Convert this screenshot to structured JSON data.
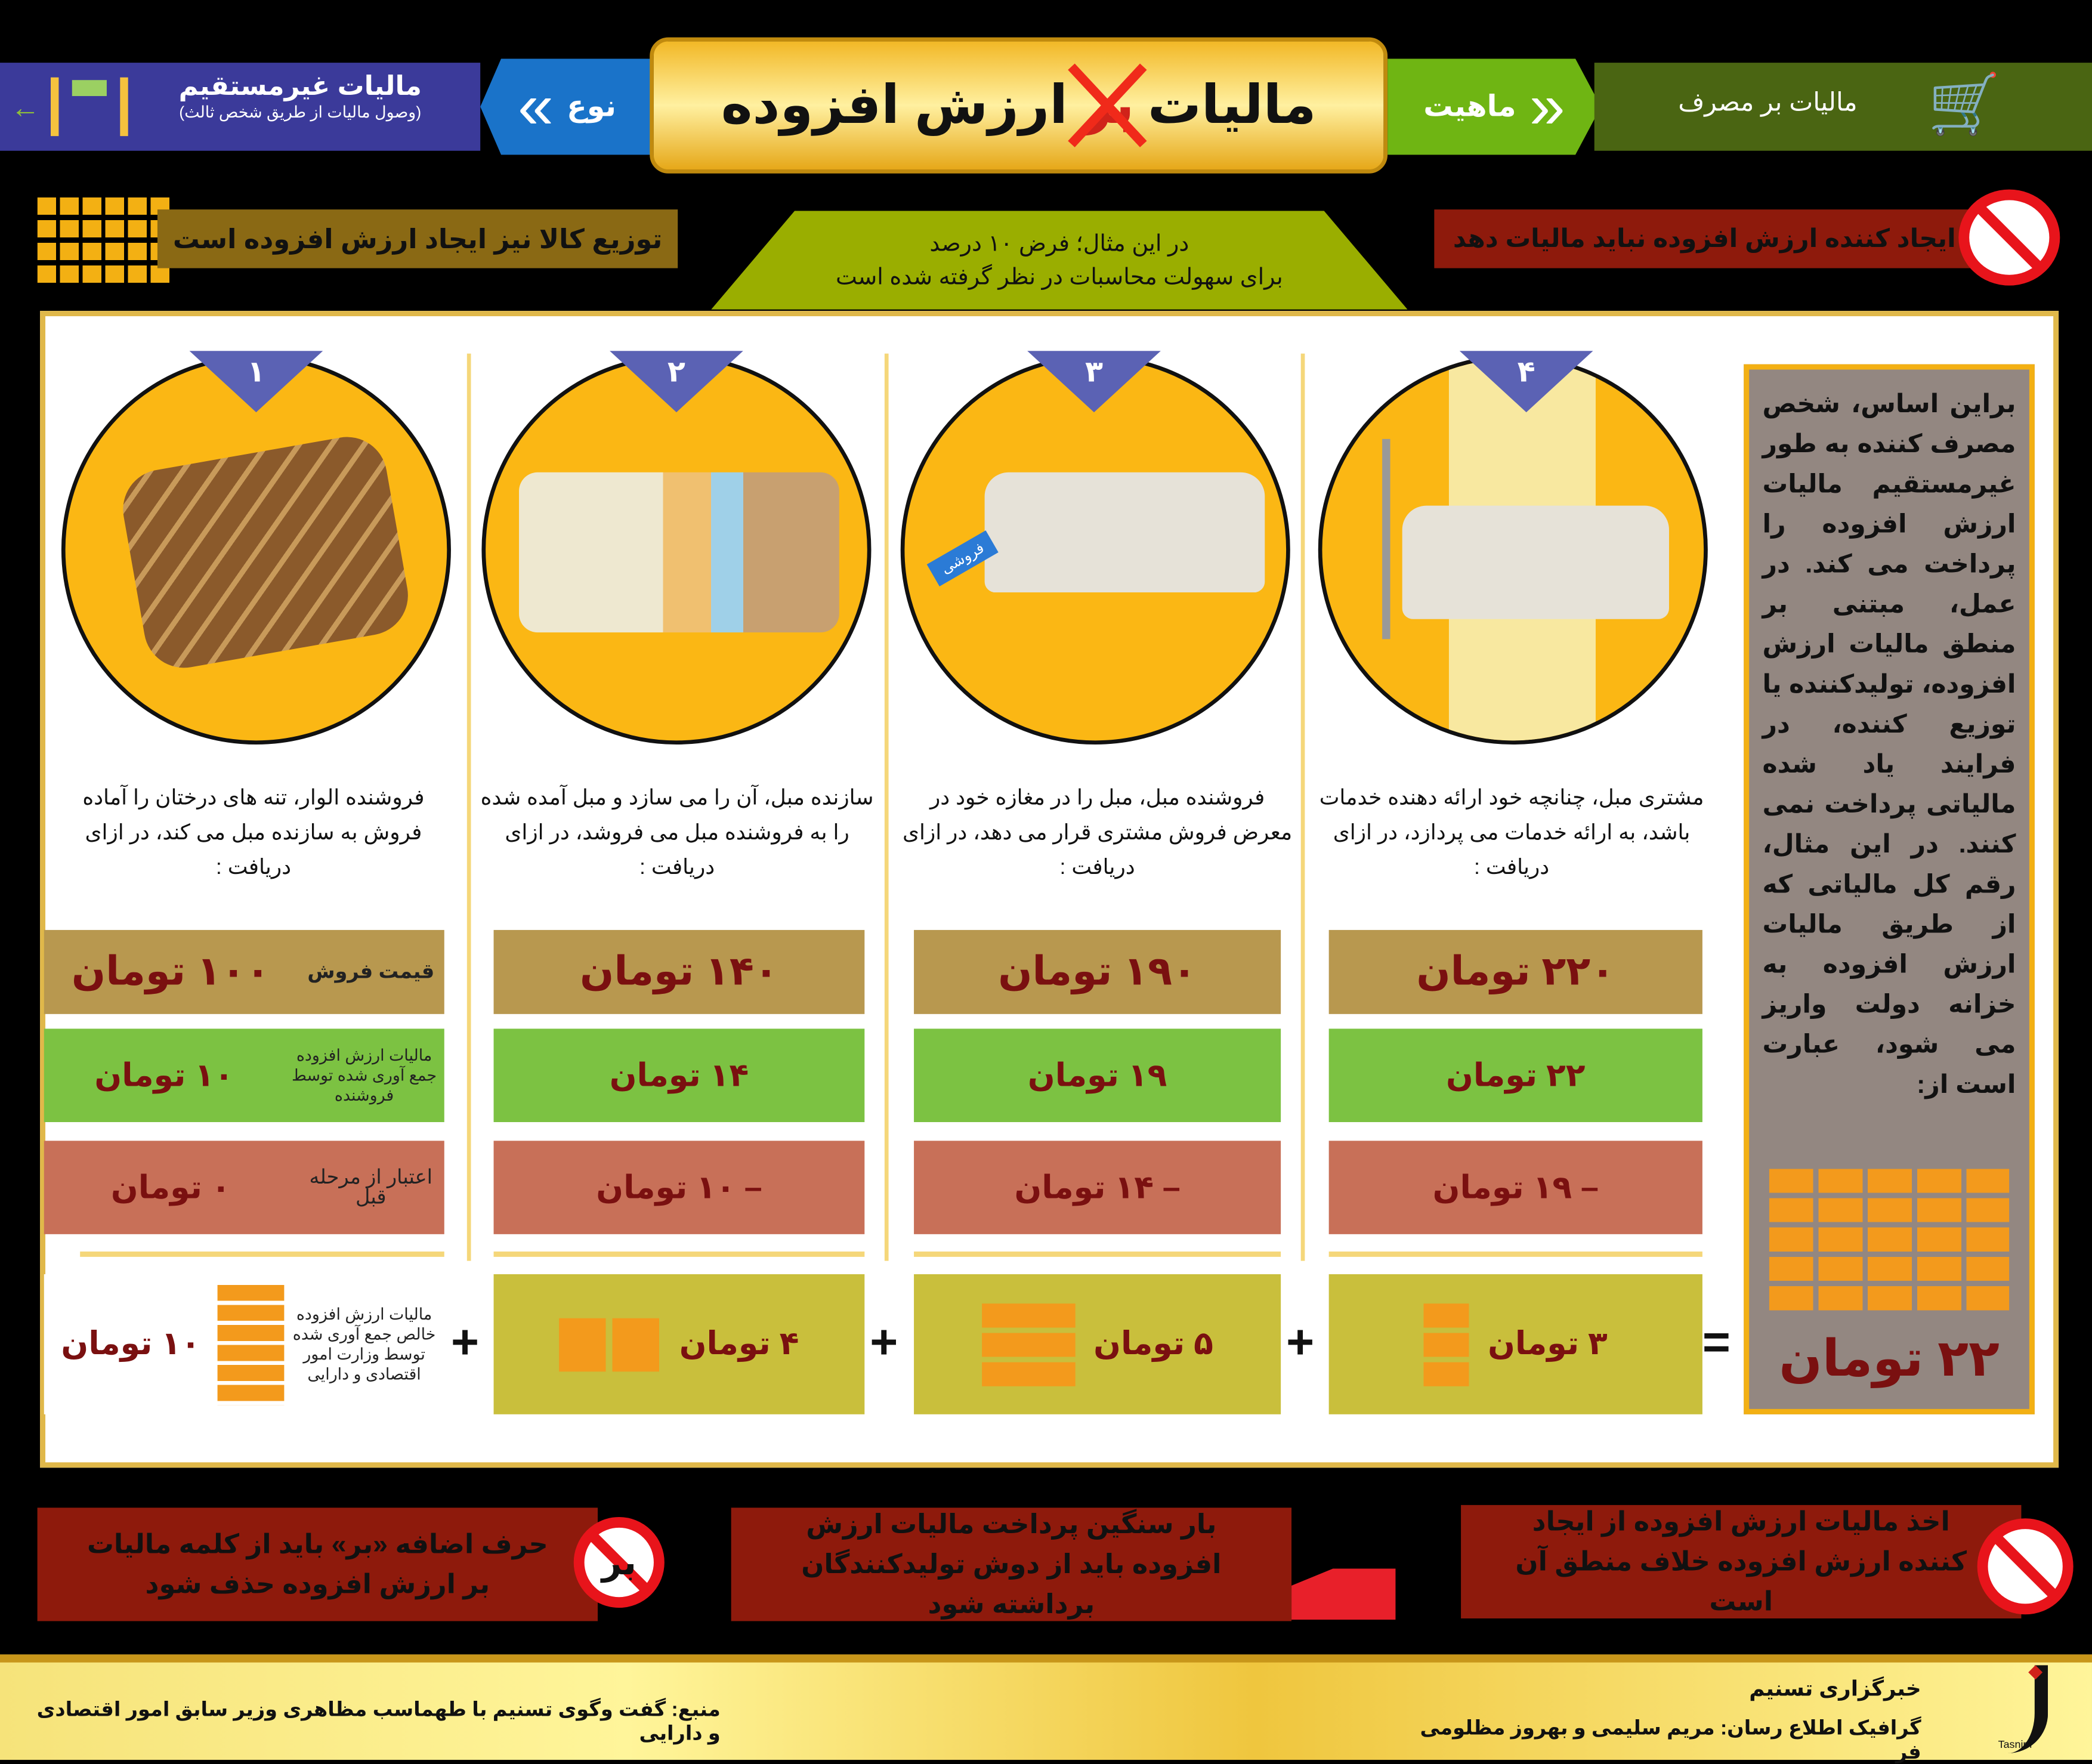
{
  "header": {
    "title_part1": "مالیات",
    "title_struck": "بر",
    "title_part2": "ارزش افزوده",
    "type_label": "نوع",
    "type_value": "مالیات غیرمستقیم",
    "type_note": "(وصول مالیات از طریق شخص ثالث)",
    "nature_label": "ماهیت",
    "nature_value": "مالیات بر مصرف",
    "colors": {
      "indirect": "#3b3a9a",
      "type": "#1a73c9",
      "nature": "#6fb513",
      "consumption": "#4a6512",
      "plaque": "#f6c945"
    }
  },
  "notes": {
    "distribution": "توزیع کالا نیز ایجاد ارزش افزوده است",
    "assumption_line1": "در این مثال؛ فرض ۱۰ درصد",
    "assumption_line2": "برای سهولت محاسبات در نظر گرفته شده است",
    "creator": "ایجاد کننده ارزش افزوده نباید مالیات دهد"
  },
  "row_labels": {
    "price": "قیمت فروش",
    "vat": "مالیات ارزش افزوده جمع آوری شده توسط فروشنده",
    "credit": "اعتبار از مرحله قبل",
    "net": "مالیات ارزش افزوده خالص جمع آوری شده توسط وزارت امور اقتصادی و دارایی"
  },
  "stages": [
    {
      "number": "۱",
      "desc": "فروشنده الوار، تنه های درختان را آماده فروش به سازنده مبل می کند، در ازای دریافت :",
      "price": "۱۰۰ تومان",
      "vat": "۱۰ تومان",
      "credit": "۰ تومان",
      "net": "۱۰ تومان",
      "image": "logs"
    },
    {
      "number": "۲",
      "desc": "سازنده مبل، آن را می سازد و مبل آمده شده را به فروشنده مبل می فروشد، در ازای دریافت :",
      "price": "۱۴۰ تومان",
      "vat": "۱۴ تومان",
      "credit": "– ۱۰ تومان",
      "net": "۴ تومان",
      "image": "sofa-cutaway"
    },
    {
      "number": "۳",
      "desc": "فروشنده مبل، مبل را در مغازه خود در معرض فروش مشتری قرار می دهد،  در ازای دریافت :",
      "price": "۱۹۰ تومان",
      "vat": "۱۹ تومان",
      "credit": "– ۱۴ تومان",
      "net": "۵ تومان",
      "image": "sofa-sale",
      "tag": "فروشی"
    },
    {
      "number": "۴",
      "desc": "مشتری مبل، چنانچه خود ارائه دهنده خدمات باشد، به ارائه خدمات می پردازد، در ازای دریافت :",
      "price": "۲۲۰ تومان",
      "vat": "۲۲ تومان",
      "credit": "– ۱۹ تومان",
      "net": "۳ تومان",
      "image": "sofa-room"
    }
  ],
  "operators": [
    "+",
    "+",
    "+",
    "="
  ],
  "summary": {
    "text": "براین اساس، شخص مصرف کننده به طور غیرمستقیم مالیات ارزش افزوده را پرداخت می کند. در عمل، مبتنی بر منطق مالیات ارزش افزوده، تولیدکننده یا توزیع کننده، در فرایند یاد شده مالیاتی پرداخت نمی کنند. در این مثال، رقم کل مالیاتی که از طریق مالیات ارزش افزوده به خزانه دولت واریز می شود، عبارت است از:",
    "total": "۲۲ تومان"
  },
  "bottom": [
    {
      "text": "اخذ مالیات ارزش افزوده از ایجاد کننده ارزش افزوده خلاف منطق آن است",
      "icon": "no-sign"
    },
    {
      "text": "بار سنگین پرداخت مالیات ارزش افزوده باید از دوش تولیدکنندگان برداشته شود",
      "icon": "factory"
    },
    {
      "text": "حرف اضافه «بر» باید از کلمه مالیات بر ارزش افزوده حذف شود",
      "icon": "no-bar-sign",
      "icon_text": "بر"
    }
  ],
  "footer": {
    "agency": "خبرگزاری تسنیم",
    "credits": "گرافیک اطلاع رسان: مریم سلیمی و بهروز مظلومی فر",
    "source": "منبع: گفت وگوی تسنیم با طهماسب مظاهری وزیر سابق امور اقتصادی و دارایی",
    "logo_text": "خبرگزاری Tasnim News Agency"
  }
}
